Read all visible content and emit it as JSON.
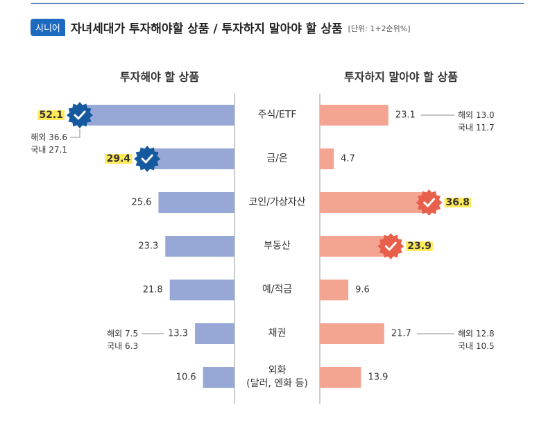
{
  "chart_data": {
    "type": "butterfly-bar",
    "badge": "시니어",
    "title": "자녀세대가 투자해야할 상품 / 투자하지 말아야 할 상품",
    "unit": "[단위: 1+2순위%]",
    "categories": [
      "주식/ETF",
      "금/은",
      "코인/가상자산",
      "부동산",
      "예/적금",
      "채권",
      "외화\n(달러, 엔화 등)"
    ],
    "series": [
      {
        "name": "투자해야 할 상품",
        "side": "left",
        "color": "#97a8d6",
        "title_color": "#6b7fc4",
        "badge_color": "#15599f",
        "values": [
          52.1,
          29.4,
          25.6,
          23.3,
          21.8,
          13.3,
          10.6
        ],
        "highlighted": [
          true,
          true,
          false,
          false,
          false,
          false,
          false
        ],
        "breakdown": [
          {
            "names": [
              "해외",
              "국내"
            ],
            "values": [
              36.6,
              27.1
            ]
          },
          null,
          null,
          null,
          null,
          {
            "names": [
              "해외",
              "국내"
            ],
            "values": [
              7.5,
              6.3
            ]
          },
          null
        ]
      },
      {
        "name": "투자하지 말아야 할 상품",
        "side": "right",
        "color": "#f4a592",
        "title_color": "#e8604c",
        "badge_color": "#e8604c",
        "values": [
          23.1,
          4.7,
          36.8,
          23.9,
          9.6,
          21.7,
          13.9
        ],
        "highlighted": [
          false,
          false,
          true,
          true,
          false,
          false,
          false
        ],
        "breakdown": [
          {
            "names": [
              "해외",
              "국내"
            ],
            "values": [
              13,
              11.7
            ],
            "value_labels": [
              "13.0",
              "11.7"
            ]
          },
          null,
          null,
          null,
          null,
          {
            "names": [
              "해외",
              "국내"
            ],
            "values": [
              12.8,
              10.5
            ]
          },
          null
        ]
      }
    ]
  }
}
